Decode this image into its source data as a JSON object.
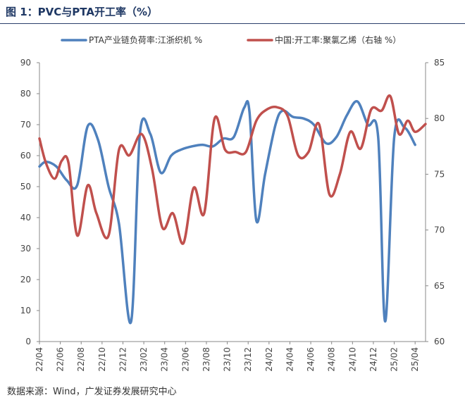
{
  "header": {
    "title": "图 1：PVC与PTA开工率（%）"
  },
  "footer": {
    "source": "数据来源：Wind，广发证券发展研究中心"
  },
  "colors": {
    "pta": "#4f81bd",
    "pvc": "#c0504d",
    "axis": "#888888"
  },
  "chart_data": {
    "type": "line",
    "title": "",
    "xlabel": "",
    "ylabel": "",
    "x_tick_labels": [
      "22/04",
      "22/06",
      "22/08",
      "22/10",
      "22/12",
      "23/02",
      "23/04",
      "23/06",
      "23/08",
      "23/10",
      "23/12",
      "24/02",
      "24/04",
      "24/06",
      "24/08",
      "24/10",
      "24/12",
      "25/02",
      "25/04"
    ],
    "x_range": [
      "2022-04",
      "2025-05"
    ],
    "ylim": [
      0,
      90
    ],
    "yticks": [
      0,
      10,
      20,
      30,
      40,
      50,
      60,
      70,
      80,
      90
    ],
    "y2lim": [
      60,
      85
    ],
    "y2ticks": [
      60,
      65,
      70,
      75,
      80,
      85
    ],
    "legend_position": "top",
    "series": [
      {
        "name": "PTA产业链负荷率:江浙织机 %",
        "axis": "left",
        "points": [
          [
            "2022-04-01",
            56.5
          ],
          [
            "2022-04-20",
            58
          ],
          [
            "2022-05-20",
            56.5
          ],
          [
            "2022-06-20",
            52
          ],
          [
            "2022-07-20",
            50.5
          ],
          [
            "2022-08-20",
            69.5
          ],
          [
            "2022-09-20",
            65
          ],
          [
            "2022-10-20",
            50
          ],
          [
            "2022-11-20",
            38
          ],
          [
            "2022-12-25",
            6.5
          ],
          [
            "2023-01-20",
            67
          ],
          [
            "2023-02-20",
            67
          ],
          [
            "2023-03-20",
            54.5
          ],
          [
            "2023-04-20",
            60
          ],
          [
            "2023-05-20",
            62
          ],
          [
            "2023-06-20",
            63
          ],
          [
            "2023-07-20",
            63.5
          ],
          [
            "2023-08-20",
            63
          ],
          [
            "2023-09-20",
            65.5
          ],
          [
            "2023-10-20",
            66
          ],
          [
            "2023-11-20",
            75.5
          ],
          [
            "2023-12-05",
            74
          ],
          [
            "2023-12-25",
            39
          ],
          [
            "2024-01-20",
            54
          ],
          [
            "2024-02-20",
            70
          ],
          [
            "2024-03-10",
            74.5
          ],
          [
            "2024-04-10",
            72.5
          ],
          [
            "2024-05-10",
            72
          ],
          [
            "2024-06-10",
            70
          ],
          [
            "2024-07-15",
            64
          ],
          [
            "2024-08-15",
            66
          ],
          [
            "2024-09-15",
            73
          ],
          [
            "2024-10-15",
            77.5
          ],
          [
            "2024-11-15",
            70
          ],
          [
            "2024-12-15",
            66
          ],
          [
            "2025-01-05",
            6.5
          ],
          [
            "2025-02-01",
            66
          ],
          [
            "2025-03-01",
            69
          ],
          [
            "2025-04-01",
            63.5
          ]
        ]
      },
      {
        "name": "中国:开工率:聚氯乙烯（右轴 %）",
        "axis": "right",
        "points": [
          [
            "2022-04-01",
            78.2
          ],
          [
            "2022-04-20",
            76
          ],
          [
            "2022-05-15",
            74.6
          ],
          [
            "2022-06-05",
            76.2
          ],
          [
            "2022-06-25",
            76
          ],
          [
            "2022-07-20",
            69.5
          ],
          [
            "2022-08-20",
            74
          ],
          [
            "2022-09-15",
            71.5
          ],
          [
            "2022-10-20",
            69.5
          ],
          [
            "2022-11-20",
            77.2
          ],
          [
            "2022-12-20",
            76.7
          ],
          [
            "2023-01-25",
            78.6
          ],
          [
            "2023-02-25",
            75.5
          ],
          [
            "2023-03-25",
            70.2
          ],
          [
            "2023-04-25",
            71.5
          ],
          [
            "2023-05-25",
            68.8
          ],
          [
            "2023-06-25",
            73.8
          ],
          [
            "2023-07-25",
            71.5
          ],
          [
            "2023-08-25",
            80.0
          ],
          [
            "2023-09-25",
            77.2
          ],
          [
            "2023-10-25",
            77.0
          ],
          [
            "2023-11-25",
            77.0
          ],
          [
            "2023-12-25",
            79.8
          ],
          [
            "2024-01-25",
            80.8
          ],
          [
            "2024-02-25",
            81.0
          ],
          [
            "2024-03-25",
            80.2
          ],
          [
            "2024-04-25",
            76.7
          ],
          [
            "2024-05-25",
            77.0
          ],
          [
            "2024-06-25",
            79.5
          ],
          [
            "2024-07-25",
            73.2
          ],
          [
            "2024-08-25",
            75.0
          ],
          [
            "2024-09-25",
            78.8
          ],
          [
            "2024-10-25",
            77.3
          ],
          [
            "2024-11-25",
            80.8
          ],
          [
            "2024-12-25",
            80.7
          ],
          [
            "2025-01-20",
            82.0
          ],
          [
            "2025-02-15",
            78.6
          ],
          [
            "2025-03-10",
            79.8
          ],
          [
            "2025-04-01",
            78.8
          ],
          [
            "2025-05-01",
            79.5
          ]
        ]
      }
    ]
  }
}
